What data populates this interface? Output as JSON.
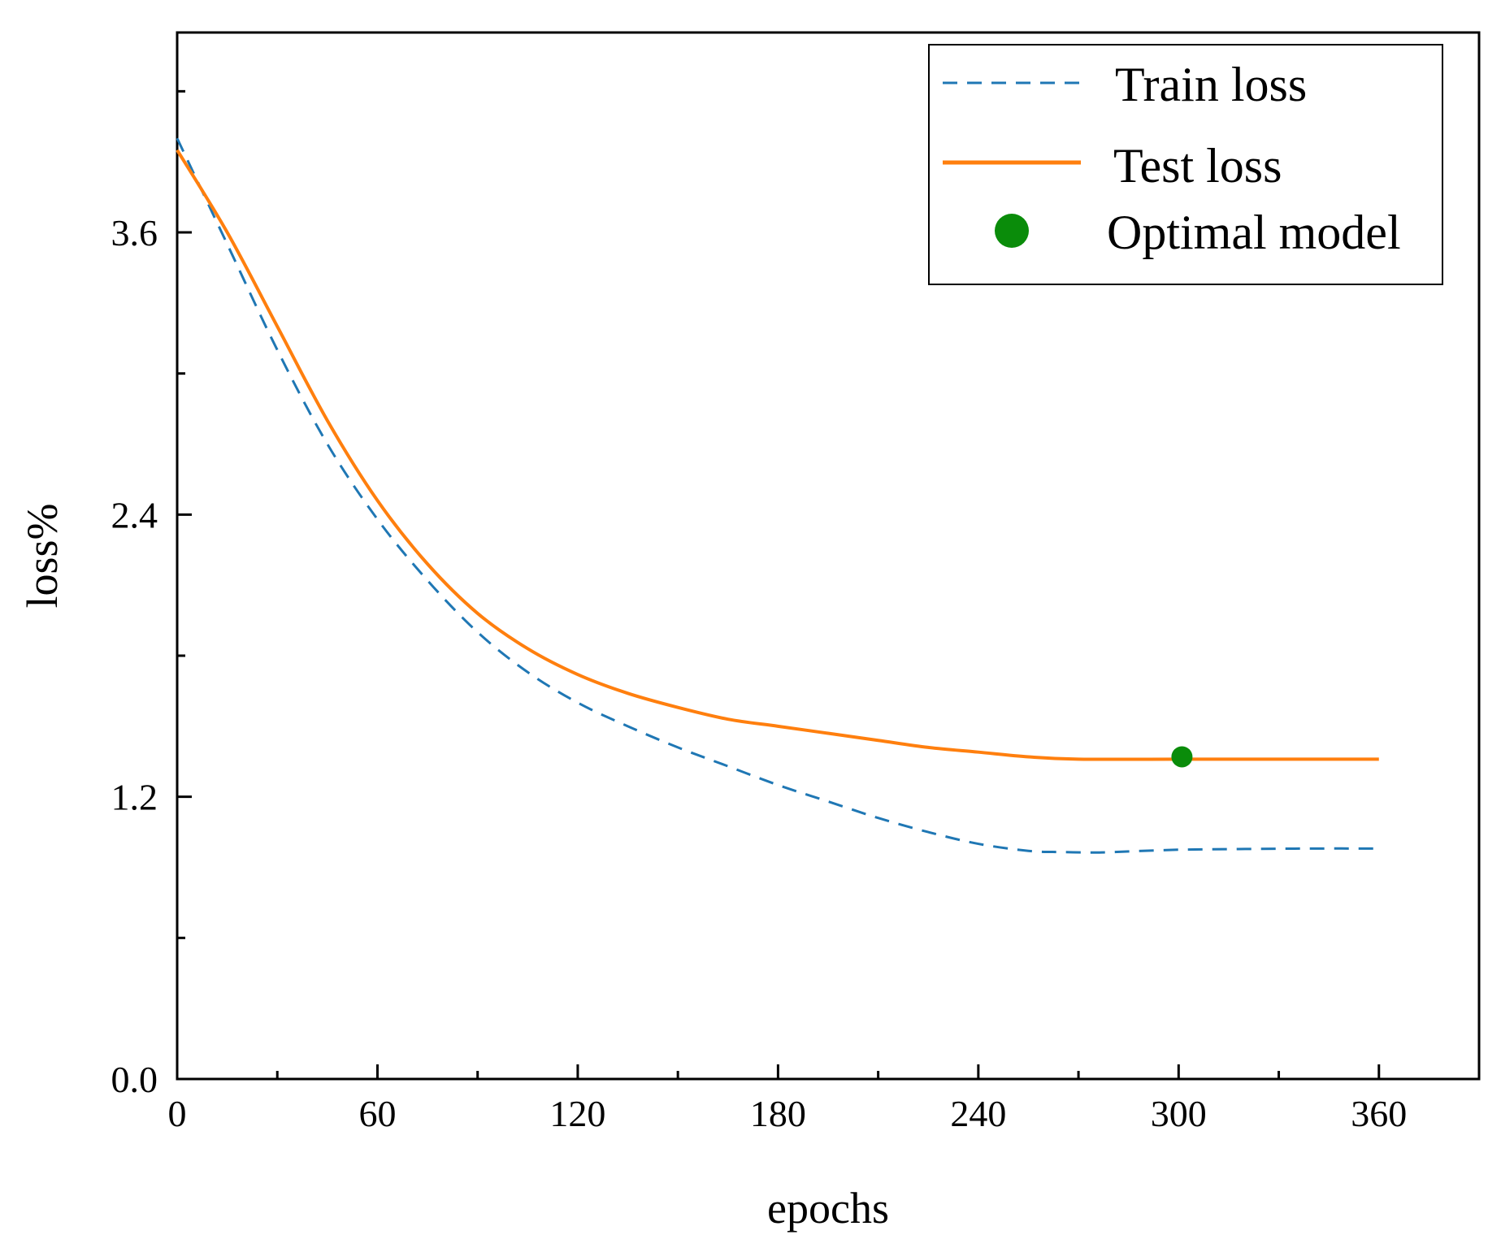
{
  "chart_data": {
    "type": "line",
    "title": "",
    "xlabel": "epochs",
    "ylabel": "loss%",
    "xlim": [
      0,
      390
    ],
    "ylim": [
      0,
      4.45
    ],
    "xticks": [
      0,
      60,
      120,
      180,
      240,
      300,
      360
    ],
    "xtick_labels": [
      "0",
      "60",
      "120",
      "180",
      "240",
      "300",
      "360"
    ],
    "xminor": [
      30,
      90,
      150,
      210,
      270,
      330
    ],
    "yticks": [
      0,
      1.2,
      2.4,
      3.6
    ],
    "ytick_labels": [
      "0.0",
      "1.2",
      "2.4",
      "3.6"
    ],
    "yminor": [
      0.6,
      1.8,
      3.0,
      4.2
    ],
    "grid": false,
    "legend_position": "top-right",
    "series": [
      {
        "name": "Train loss",
        "style": "dashed",
        "color": "#1f77b4",
        "x": [
          0,
          15,
          30,
          45,
          60,
          75,
          90,
          105,
          120,
          135,
          150,
          165,
          180,
          195,
          210,
          225,
          240,
          255,
          265,
          275,
          280,
          300,
          320,
          340,
          360
        ],
        "y": [
          4.0,
          3.55,
          3.1,
          2.7,
          2.38,
          2.12,
          1.9,
          1.73,
          1.6,
          1.5,
          1.41,
          1.33,
          1.25,
          1.18,
          1.11,
          1.05,
          1.0,
          0.97,
          0.965,
          0.963,
          0.965,
          0.975,
          0.978,
          0.98,
          0.98
        ]
      },
      {
        "name": "Test loss",
        "style": "solid",
        "color": "#ff7f0e",
        "x": [
          0,
          15,
          30,
          45,
          60,
          75,
          90,
          105,
          120,
          135,
          150,
          165,
          180,
          195,
          210,
          225,
          240,
          255,
          270,
          300,
          330,
          360
        ],
        "y": [
          3.95,
          3.6,
          3.2,
          2.8,
          2.46,
          2.19,
          1.98,
          1.83,
          1.72,
          1.64,
          1.58,
          1.53,
          1.5,
          1.47,
          1.44,
          1.41,
          1.39,
          1.37,
          1.36,
          1.36,
          1.36,
          1.36
        ]
      },
      {
        "name": "Optimal model",
        "style": "marker",
        "color": "#0a8c0a",
        "x": [
          301
        ],
        "y": [
          1.37
        ]
      }
    ]
  }
}
